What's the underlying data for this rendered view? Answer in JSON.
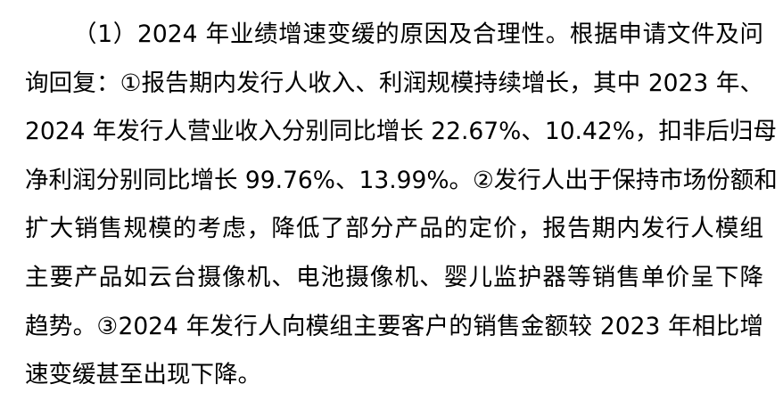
{
  "paragraph": {
    "lines": [
      "（1）2024 年业绩增速变缓的原因及合理性。根据申请文件及问",
      "询回复：①报告期内发行人收入、利润规模持续增长，其中 2023 年、",
      "2024 年发行人营业收入分别同比增长 22.67%、10.42%，扣非后归母",
      "净利润分别同比增长 99.76%、13.99%。②发行人出于保持市场份额和",
      "扩大销售规模的考虑，降低了部分产品的定价，报告期内发行人模组",
      "主要产品如云台摄像机、电池摄像机、婴儿监护器等销售单价呈下降",
      "趋势。③2024 年发行人向模组主要客户的销售金额较 2023 年相比增",
      "速变缓甚至出现下降。"
    ]
  }
}
